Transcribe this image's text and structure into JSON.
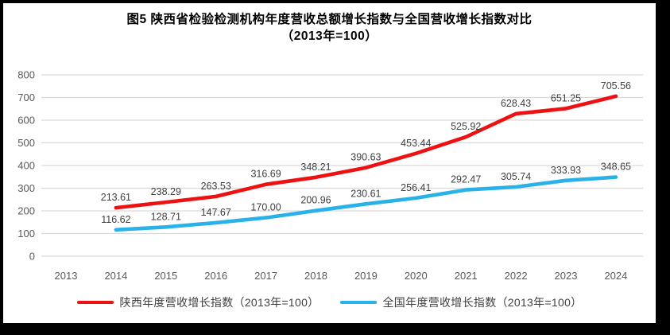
{
  "title": {
    "line1": "图5  陕西省检验检测机构年度营收总额增长指数与全国营收增长指数对比",
    "line2": "（2013年=100）"
  },
  "colors": {
    "shaanxi_line": "#EE1111",
    "national_line": "#29B2E8",
    "grid": "#D9D9D9",
    "tick_text": "#595959",
    "data_label_text": "#404040",
    "frame": "#000000",
    "background": "#FFFFFF"
  },
  "chart_data": {
    "type": "line",
    "title": "图5 陕西省检验检测机构年度营收总额增长指数与全国营收增长指数对比（2013年=100）",
    "categories": [
      "2013",
      "2014",
      "2015",
      "2016",
      "2017",
      "2018",
      "2019",
      "2020",
      "2021",
      "2022",
      "2023",
      "2024"
    ],
    "series": [
      {
        "name": "陕西年度营收增长指数（2013年=100）",
        "color": "#EE1111",
        "values": [
          null,
          213.61,
          238.29,
          263.53,
          316.69,
          348.21,
          390.63,
          453.44,
          525.92,
          628.43,
          651.25,
          705.56
        ],
        "labels": [
          "",
          "213.61",
          "238.29",
          "263.53",
          "316.69",
          "348.21",
          "390.63",
          "453.44",
          "525.92",
          "628.43",
          "651.25",
          "705.56"
        ]
      },
      {
        "name": "全国年度营收增长指数（2013年=100）",
        "color": "#29B2E8",
        "values": [
          null,
          116.62,
          128.71,
          147.67,
          170.0,
          200.96,
          230.61,
          256.41,
          292.47,
          305.74,
          333.93,
          348.65
        ],
        "labels": [
          "",
          "116.62",
          "128.71",
          "147.67",
          "170.00",
          "200.96",
          "230.61",
          "256.41",
          "292.47",
          "305.74",
          "333.93",
          "348.65"
        ]
      }
    ],
    "xlabel": "",
    "ylabel": "",
    "ylim": [
      0,
      800
    ],
    "ytick_step": 100,
    "yticks": [
      "0",
      "100",
      "200",
      "300",
      "400",
      "500",
      "600",
      "700",
      "800"
    ],
    "grid": true,
    "legend_position": "bottom"
  }
}
